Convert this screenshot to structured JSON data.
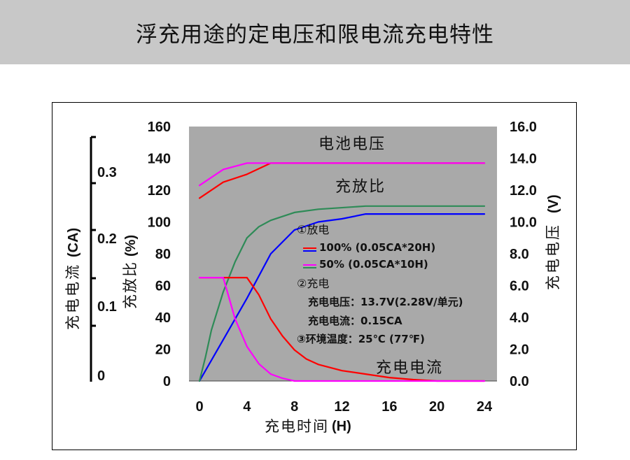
{
  "page_title": "浮充用途的定电压和限电流充电特性",
  "chart_data": {
    "type": "line",
    "title": "",
    "xlabel": "充电时间",
    "xunit": "(H)",
    "x_ticks": [
      "0",
      "4",
      "8",
      "12",
      "16",
      "20",
      "24"
    ],
    "xlim": [
      0,
      24
    ],
    "left_axis": {
      "label": "充放比",
      "unit": "(%)",
      "ticks": [
        "0",
        "20",
        "40",
        "60",
        "80",
        "100",
        "120",
        "140",
        "160"
      ],
      "ylim": [
        0,
        160
      ]
    },
    "right_axis": {
      "label": "电压",
      "unit": "(V)",
      "prefix": "充电",
      "ticks": [
        "0.0",
        "2.0",
        "4.0",
        "6.0",
        "8.0",
        "10.0",
        "12.0",
        "14.0",
        "16.0"
      ],
      "ylim": [
        0,
        16
      ]
    },
    "current_axis": {
      "label": "充电电流",
      "unit": "(CA)",
      "ticks": [
        "0",
        "0.1",
        "0.2",
        "0.3"
      ],
      "ylim": [
        0,
        0.3
      ]
    },
    "curve_labels": {
      "voltage": "电池电压",
      "ratio": "充放比",
      "current": "充电电流"
    },
    "annotations": {
      "discharge_header": "①放电",
      "legend_red": "100% (0.05CA*20H)",
      "legend_magenta": "50% (0.05CA*10H)",
      "charge_header": "②充电",
      "charge_voltage": "充电电压：13.7V(2.28V/单元)",
      "charge_current": "充电电流：0.15CA",
      "ambient": "③环境温度：25℃ (77℉)"
    },
    "colors": {
      "plot_bg": "#a9a9a9",
      "red": "#ff0000",
      "blue": "#0000ff",
      "magenta": "#ff00ff",
      "green": "#2e8b57"
    },
    "series": [
      {
        "name": "100% (0.05CA*20H)",
        "quantity": "voltage",
        "axis": "right",
        "color": "#ff0000",
        "points": [
          [
            0,
            11.5
          ],
          [
            2,
            12.5
          ],
          [
            4,
            13.0
          ],
          [
            6,
            13.7
          ],
          [
            8,
            13.7
          ],
          [
            12,
            13.7
          ],
          [
            16,
            13.7
          ],
          [
            20,
            13.7
          ],
          [
            24,
            13.7
          ]
        ]
      },
      {
        "name": "50% (0.05CA*10H)",
        "quantity": "voltage",
        "axis": "right",
        "color": "#ff00ff",
        "points": [
          [
            0,
            12.3
          ],
          [
            2,
            13.3
          ],
          [
            4,
            13.7
          ],
          [
            8,
            13.7
          ],
          [
            12,
            13.7
          ],
          [
            16,
            13.7
          ],
          [
            20,
            13.7
          ],
          [
            24,
            13.7
          ]
        ]
      },
      {
        "name": "100% (0.05CA*20H)",
        "quantity": "charge_ratio",
        "axis": "left",
        "color": "#0000ff",
        "points": [
          [
            0,
            0
          ],
          [
            2,
            26
          ],
          [
            4,
            52
          ],
          [
            6,
            80
          ],
          [
            8,
            95
          ],
          [
            10,
            100
          ],
          [
            12,
            102
          ],
          [
            14,
            105
          ],
          [
            16,
            105
          ],
          [
            20,
            105
          ],
          [
            24,
            105
          ]
        ]
      },
      {
        "name": "50% (0.05CA*10H)",
        "quantity": "charge_ratio",
        "axis": "left",
        "color": "#2e8b57",
        "points": [
          [
            0,
            0
          ],
          [
            0.5,
            15
          ],
          [
            1,
            32
          ],
          [
            2,
            56
          ],
          [
            3,
            75
          ],
          [
            4,
            90
          ],
          [
            5,
            97
          ],
          [
            6,
            101
          ],
          [
            8,
            106
          ],
          [
            10,
            108
          ],
          [
            14,
            110
          ],
          [
            18,
            110
          ],
          [
            24,
            110
          ]
        ]
      },
      {
        "name": "100% (0.05CA*20H)",
        "quantity": "current",
        "axis": "current",
        "color": "#ff0000",
        "points": [
          [
            0,
            0.15
          ],
          [
            4,
            0.15
          ],
          [
            5,
            0.125
          ],
          [
            6,
            0.09
          ],
          [
            7,
            0.065
          ],
          [
            8,
            0.045
          ],
          [
            9,
            0.032
          ],
          [
            10,
            0.024
          ],
          [
            12,
            0.015
          ],
          [
            14,
            0.01
          ],
          [
            16,
            0.005
          ],
          [
            18,
            0.002
          ],
          [
            20,
            0.0
          ],
          [
            24,
            0.0
          ]
        ]
      },
      {
        "name": "50% (0.05CA*10H)",
        "quantity": "current",
        "axis": "current",
        "color": "#ff00ff",
        "points": [
          [
            0,
            0.15
          ],
          [
            2,
            0.15
          ],
          [
            3,
            0.09
          ],
          [
            4,
            0.05
          ],
          [
            5,
            0.025
          ],
          [
            6,
            0.01
          ],
          [
            7,
            0.004
          ],
          [
            8,
            0.0
          ],
          [
            24,
            0.0
          ]
        ]
      }
    ]
  }
}
